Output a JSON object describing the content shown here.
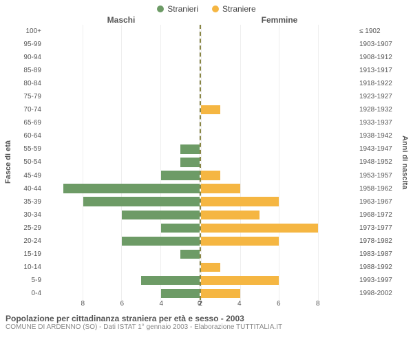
{
  "legend": {
    "male": {
      "label": "Stranieri",
      "color": "#6d9b66"
    },
    "female": {
      "label": "Straniere",
      "color": "#f5b642"
    }
  },
  "headers": {
    "male": "Maschi",
    "female": "Femmine"
  },
  "y_axis_left": "Fasce di età",
  "y_axis_right": "Anni di nascita",
  "x_axis": {
    "min": 0,
    "max": 8,
    "step": 2,
    "ticks": [
      "0",
      "2",
      "4",
      "6",
      "8"
    ]
  },
  "rows": [
    {
      "age": "100+",
      "birth": "≤ 1902",
      "m": 0,
      "f": 0
    },
    {
      "age": "95-99",
      "birth": "1903-1907",
      "m": 0,
      "f": 0
    },
    {
      "age": "90-94",
      "birth": "1908-1912",
      "m": 0,
      "f": 0
    },
    {
      "age": "85-89",
      "birth": "1913-1917",
      "m": 0,
      "f": 0
    },
    {
      "age": "80-84",
      "birth": "1918-1922",
      "m": 0,
      "f": 0
    },
    {
      "age": "75-79",
      "birth": "1923-1927",
      "m": 0,
      "f": 0
    },
    {
      "age": "70-74",
      "birth": "1928-1932",
      "m": 0,
      "f": 1
    },
    {
      "age": "65-69",
      "birth": "1933-1937",
      "m": 0,
      "f": 0
    },
    {
      "age": "60-64",
      "birth": "1938-1942",
      "m": 0,
      "f": 0
    },
    {
      "age": "55-59",
      "birth": "1943-1947",
      "m": 1,
      "f": 0
    },
    {
      "age": "50-54",
      "birth": "1948-1952",
      "m": 1,
      "f": 0
    },
    {
      "age": "45-49",
      "birth": "1953-1957",
      "m": 2,
      "f": 1
    },
    {
      "age": "40-44",
      "birth": "1958-1962",
      "m": 7,
      "f": 2
    },
    {
      "age": "35-39",
      "birth": "1963-1967",
      "m": 6,
      "f": 4
    },
    {
      "age": "30-34",
      "birth": "1968-1972",
      "m": 4,
      "f": 3
    },
    {
      "age": "25-29",
      "birth": "1973-1977",
      "m": 2,
      "f": 6
    },
    {
      "age": "20-24",
      "birth": "1978-1982",
      "m": 4,
      "f": 4
    },
    {
      "age": "15-19",
      "birth": "1983-1987",
      "m": 1,
      "f": 0
    },
    {
      "age": "10-14",
      "birth": "1988-1992",
      "m": 0,
      "f": 1
    },
    {
      "age": "5-9",
      "birth": "1993-1997",
      "m": 3,
      "f": 4
    },
    {
      "age": "0-4",
      "birth": "1998-2002",
      "m": 2,
      "f": 2
    }
  ],
  "caption": {
    "title": "Popolazione per cittadinanza straniera per età e sesso - 2003",
    "subtitle": "COMUNE DI ARDENNO (SO) - Dati ISTAT 1° gennaio 2003 - Elaborazione TUTTITALIA.IT"
  },
  "colors": {
    "background": "#ffffff",
    "grid": "#eeeeee",
    "axis_divider": "#888543",
    "text": "#555555"
  }
}
